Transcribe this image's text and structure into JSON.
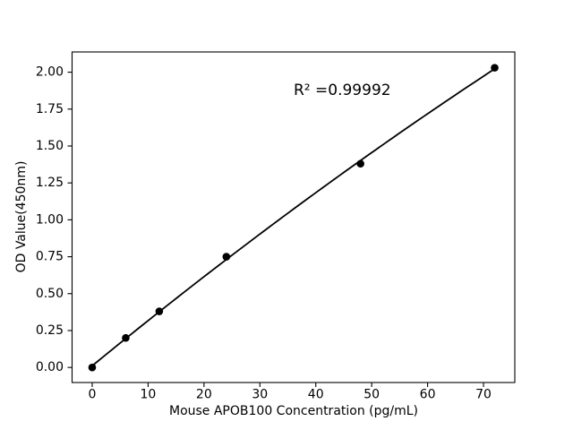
{
  "figure": {
    "background": "#ffffff",
    "text_color": "#000000"
  },
  "chart_data": {
    "type": "scatter",
    "title": "",
    "xlabel": "Mouse APOB100 Concentration (pg/mL)",
    "ylabel": "OD Value(450nm)",
    "x": [
      0,
      6,
      12,
      24,
      48,
      72
    ],
    "y": [
      0.0,
      0.2,
      0.38,
      0.75,
      1.38,
      2.03
    ],
    "trendline": {
      "type": "quadratic",
      "r_squared": 0.99992,
      "label": "R² =0.99992"
    },
    "xlim": [
      -3.6,
      75.6
    ],
    "ylim": [
      -0.102,
      2.137
    ],
    "x_ticks": [
      0,
      10,
      20,
      30,
      40,
      50,
      60,
      70
    ],
    "x_tick_labels": [
      "0",
      "10",
      "20",
      "30",
      "40",
      "50",
      "60",
      "70"
    ],
    "y_ticks": [
      0.0,
      0.25,
      0.5,
      0.75,
      1.0,
      1.25,
      1.5,
      1.75,
      2.0
    ],
    "y_tick_labels": [
      "0.00",
      "0.25",
      "0.50",
      "0.75",
      "1.00",
      "1.25",
      "1.50",
      "1.75",
      "2.00"
    ],
    "grid": false,
    "legend": null,
    "marker_color": "#000000",
    "line_color": "#000000",
    "axes_color": "#000000"
  }
}
